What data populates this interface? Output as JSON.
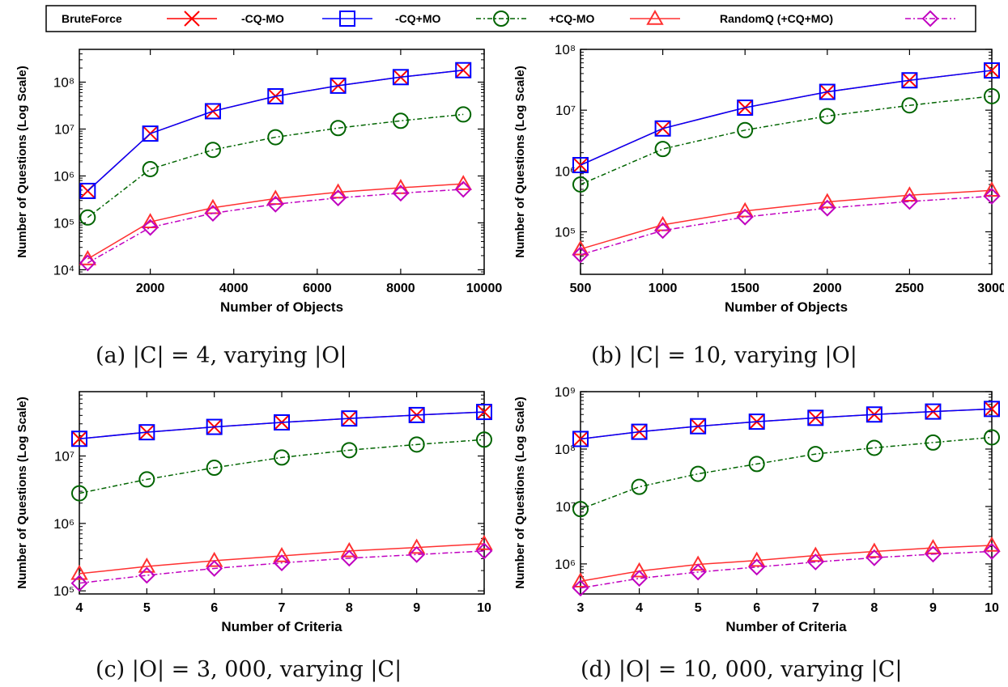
{
  "legend": {
    "entries": [
      {
        "label": "BruteForce",
        "color": "#ff0000",
        "marker": "cross",
        "dash": ""
      },
      {
        "label": "-CQ-MO",
        "color": "#0000ff",
        "marker": "square",
        "dash": ""
      },
      {
        "label": "-CQ+MO",
        "color": "#006400",
        "marker": "circle",
        "dash": "6,3,2,3"
      },
      {
        "label": "+CQ-MO",
        "color": "#ff3030",
        "marker": "triangle",
        "dash": ""
      },
      {
        "label": "RandomQ (+CQ+MO)",
        "color": "#c000c0",
        "marker": "diamond",
        "dash": "7,3,2,3"
      }
    ]
  },
  "chart_data": [
    {
      "type": "line",
      "caption": "(a) |C| = 4, varying |O|",
      "xlabel": "Number of Objects",
      "ylabel": "Number of Questions (Log Scale)",
      "log_y": true,
      "xlim": [
        300,
        10000
      ],
      "ylim": [
        8000,
        500000000
      ],
      "xticks": [
        2000,
        4000,
        6000,
        8000,
        10000
      ],
      "yticks": [
        10000,
        100000,
        1000000,
        10000000,
        100000000
      ],
      "x": [
        500,
        2000,
        3500,
        5000,
        6500,
        8000,
        9500
      ],
      "series": [
        {
          "name": "BruteForce",
          "values": [
            480000,
            8000000,
            24000000,
            50000000,
            84000000,
            128000000,
            180000000
          ]
        },
        {
          "name": "-CQ-MO",
          "values": [
            480000,
            8000000,
            24000000,
            50000000,
            84000000,
            128000000,
            180000000
          ]
        },
        {
          "name": "-CQ+MO",
          "values": [
            130000,
            1400000,
            3600000,
            6700000,
            10500000,
            15000000,
            20500000
          ]
        },
        {
          "name": "+CQ-MO",
          "values": [
            17000,
            105000,
            210000,
            330000,
            450000,
            560000,
            680000
          ]
        },
        {
          "name": "RandomQ (+CQ+MO)",
          "values": [
            14000,
            80000,
            160000,
            250000,
            340000,
            430000,
            520000
          ]
        }
      ]
    },
    {
      "type": "line",
      "caption": "(b) |C| = 10, varying |O|",
      "xlabel": "Number of Objects",
      "ylabel": "Number of Questions (Log Scale)",
      "log_y": true,
      "xlim": [
        500,
        3000
      ],
      "ylim": [
        20000,
        100000000
      ],
      "xticks": [
        500,
        1000,
        1500,
        2000,
        2500,
        3000
      ],
      "yticks": [
        100000,
        1000000,
        10000000,
        100000000
      ],
      "x": [
        500,
        1000,
        1500,
        2000,
        2500,
        3000
      ],
      "series": [
        {
          "name": "BruteForce",
          "values": [
            1250000,
            5000000,
            11000000,
            20000000,
            31000000,
            45000000
          ]
        },
        {
          "name": "-CQ-MO",
          "values": [
            1250000,
            5000000,
            11000000,
            20000000,
            31000000,
            45000000
          ]
        },
        {
          "name": "-CQ+MO",
          "values": [
            600000,
            2300000,
            4700000,
            8000000,
            12000000,
            17000000
          ]
        },
        {
          "name": "+CQ-MO",
          "values": [
            52000,
            130000,
            220000,
            310000,
            400000,
            480000
          ]
        },
        {
          "name": "RandomQ (+CQ+MO)",
          "values": [
            42000,
            105000,
            175000,
            245000,
            315000,
            385000
          ]
        }
      ]
    },
    {
      "type": "line",
      "caption": "(c) |O| = 3, 000, varying |C|",
      "xlabel": "Number of Criteria",
      "ylabel": "Number of Questions (Log Scale)",
      "log_y": true,
      "xlim": [
        4,
        10
      ],
      "ylim": [
        90000,
        90000000
      ],
      "xticks": [
        4,
        5,
        6,
        7,
        8,
        9,
        10
      ],
      "yticks": [
        100000,
        1000000,
        10000000
      ],
      "x": [
        4,
        5,
        6,
        7,
        8,
        9,
        10
      ],
      "series": [
        {
          "name": "BruteForce",
          "values": [
            18000000,
            22500000,
            27000000,
            31500000,
            36000000,
            40500000,
            45000000
          ]
        },
        {
          "name": "-CQ-MO",
          "values": [
            18000000,
            22500000,
            27000000,
            31500000,
            36000000,
            40500000,
            45000000
          ]
        },
        {
          "name": "-CQ+MO",
          "values": [
            2800000,
            4500000,
            6700000,
            9500000,
            12200000,
            14800000,
            17500000
          ]
        },
        {
          "name": "+CQ-MO",
          "values": [
            180000,
            230000,
            280000,
            330000,
            390000,
            440000,
            500000
          ]
        },
        {
          "name": "RandomQ (+CQ+MO)",
          "values": [
            130000,
            170000,
            215000,
            260000,
            305000,
            345000,
            390000
          ]
        }
      ]
    },
    {
      "type": "line",
      "caption": "(d) |O| = 10, 000, varying |C|",
      "xlabel": "Number of Criteria",
      "ylabel": "Number of Questions (Log Scale)",
      "log_y": true,
      "xlim": [
        3,
        10
      ],
      "ylim": [
        300000,
        1000000000
      ],
      "xticks": [
        3,
        4,
        5,
        6,
        7,
        8,
        9,
        10
      ],
      "yticks": [
        1000000,
        10000000,
        100000000,
        1000000000
      ],
      "x": [
        3,
        4,
        5,
        6,
        7,
        8,
        9,
        10
      ],
      "series": [
        {
          "name": "BruteForce",
          "values": [
            150000000,
            200000000,
            250000000,
            300000000,
            350000000,
            400000000,
            450000000,
            500000000
          ]
        },
        {
          "name": "-CQ-MO",
          "values": [
            150000000,
            200000000,
            250000000,
            300000000,
            350000000,
            400000000,
            450000000,
            500000000
          ]
        },
        {
          "name": "-CQ+MO",
          "values": [
            9000000,
            22000000,
            37000000,
            55000000,
            82000000,
            105000000,
            130000000,
            160000000
          ]
        },
        {
          "name": "+CQ-MO",
          "values": [
            500000,
            750000,
            980000,
            1150000,
            1400000,
            1650000,
            1900000,
            2100000
          ]
        },
        {
          "name": "RandomQ (+CQ+MO)",
          "values": [
            380000,
            560000,
            720000,
            880000,
            1080000,
            1280000,
            1480000,
            1650000
          ]
        }
      ]
    }
  ]
}
